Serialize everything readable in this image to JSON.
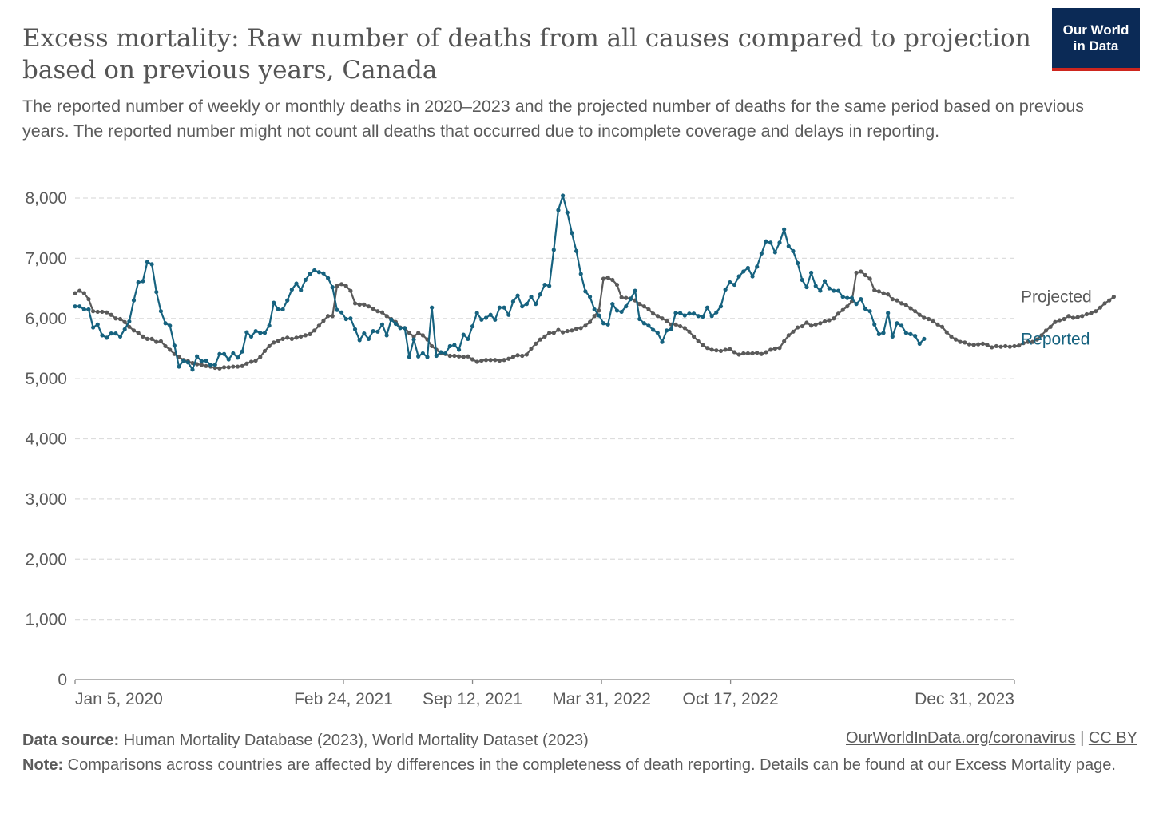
{
  "header": {
    "title": "Excess mortality: Raw number of deaths from all causes compared to projection based on previous years, Canada",
    "subtitle": "The reported number of weekly or monthly deaths in 2020–2023 and the projected number of deaths for the same period based on previous years. The reported number might not count all deaths that occurred due to incomplete coverage and delays in reporting."
  },
  "logo": {
    "line1": "Our World",
    "line2": "in Data",
    "bg": "#0b2a56",
    "accent": "#ce261e"
  },
  "footer": {
    "source_label": "Data source:",
    "source_text": "Human Mortality Database (2023), World Mortality Dataset (2023)",
    "link_text": "OurWorldInData.org/coronavirus",
    "separator": "|",
    "license_text": "CC BY",
    "note_label": "Note:",
    "note_text": "Comparisons across countries are affected by differences in the completeness of death reporting. Details can be found at our Excess Mortality page."
  },
  "chart_data": {
    "type": "line",
    "ylim": [
      0,
      8000
    ],
    "yticks": [
      0,
      1000,
      2000,
      3000,
      4000,
      5000,
      6000,
      7000,
      8000
    ],
    "ytick_labels": [
      "0",
      "1,000",
      "2,000",
      "3,000",
      "4,000",
      "5,000",
      "6,000",
      "7,000",
      "8,000"
    ],
    "xlim": [
      "2020-01-05",
      "2023-12-31"
    ],
    "xticks": [
      "2020-01-05",
      "2021-02-24",
      "2021-09-12",
      "2022-03-31",
      "2022-10-17",
      "2023-12-31"
    ],
    "xtick_labels": [
      "Jan 5, 2020",
      "Feb 24, 2021",
      "Sep 12, 2021",
      "Mar 31, 2022",
      "Oct 17, 2022",
      "Dec 31, 2023"
    ],
    "grid": true,
    "legend_position": "right, at line ends",
    "x_start": "2020-01-05",
    "x_step_days": 7,
    "series": [
      {
        "name": "Projected",
        "color": "#5a5a5a",
        "values": [
          6420,
          6460,
          6420,
          6320,
          6120,
          6110,
          6110,
          6100,
          6060,
          6000,
          5990,
          5940,
          5860,
          5800,
          5760,
          5700,
          5660,
          5660,
          5610,
          5620,
          5540,
          5480,
          5410,
          5360,
          5310,
          5290,
          5260,
          5240,
          5230,
          5210,
          5200,
          5180,
          5170,
          5190,
          5190,
          5200,
          5200,
          5210,
          5250,
          5280,
          5300,
          5360,
          5460,
          5540,
          5600,
          5630,
          5660,
          5680,
          5660,
          5680,
          5700,
          5720,
          5740,
          5800,
          5880,
          5960,
          6040,
          6040,
          6540,
          6570,
          6540,
          6460,
          6250,
          6230,
          6230,
          6200,
          6160,
          6120,
          6100,
          6040,
          5990,
          5940,
          5850,
          5840,
          5760,
          5700,
          5760,
          5720,
          5650,
          5540,
          5480,
          5420,
          5410,
          5380,
          5380,
          5370,
          5360,
          5370,
          5320,
          5280,
          5300,
          5310,
          5310,
          5310,
          5300,
          5310,
          5330,
          5360,
          5390,
          5380,
          5400,
          5500,
          5580,
          5650,
          5700,
          5760,
          5760,
          5810,
          5770,
          5790,
          5800,
          5830,
          5840,
          5880,
          5940,
          6040,
          6130,
          6660,
          6680,
          6640,
          6560,
          6350,
          6340,
          6330,
          6300,
          6240,
          6200,
          6150,
          6080,
          6040,
          6000,
          5960,
          5900,
          5900,
          5870,
          5840,
          5780,
          5700,
          5620,
          5560,
          5510,
          5480,
          5470,
          5460,
          5480,
          5490,
          5440,
          5400,
          5420,
          5420,
          5420,
          5430,
          5410,
          5440,
          5480,
          5500,
          5510,
          5620,
          5720,
          5780,
          5850,
          5870,
          5930,
          5880,
          5900,
          5920,
          5950,
          5970,
          6000,
          6080,
          6140,
          6200,
          6280,
          6760,
          6780,
          6720,
          6660,
          6470,
          6450,
          6420,
          6400,
          6320,
          6300,
          6250,
          6220,
          6170,
          6120,
          6060,
          6010,
          5990,
          5950,
          5900,
          5860,
          5770,
          5700,
          5650,
          5610,
          5600,
          5570,
          5560,
          5570,
          5580,
          5560,
          5520,
          5540,
          5530,
          5540,
          5530,
          5540,
          5550,
          5590,
          5610,
          5610,
          5650,
          5720,
          5800,
          5860,
          5940,
          5970,
          5990,
          6040,
          6010,
          6020,
          6040,
          6070,
          6090,
          6120,
          6180,
          6250,
          6300,
          6360
        ]
      },
      {
        "name": "Reported",
        "color": "#16627f",
        "values": [
          6200,
          6200,
          6150,
          6150,
          5850,
          5900,
          5720,
          5680,
          5750,
          5750,
          5700,
          5820,
          5950,
          6300,
          6600,
          6620,
          6940,
          6900,
          6440,
          6120,
          5920,
          5880,
          5550,
          5200,
          5300,
          5270,
          5150,
          5370,
          5290,
          5300,
          5230,
          5230,
          5410,
          5410,
          5320,
          5420,
          5350,
          5450,
          5770,
          5700,
          5790,
          5760,
          5760,
          5880,
          6260,
          6150,
          6150,
          6300,
          6480,
          6580,
          6470,
          6640,
          6740,
          6800,
          6770,
          6750,
          6670,
          6520,
          6140,
          6100,
          5990,
          6000,
          5820,
          5640,
          5750,
          5660,
          5790,
          5780,
          5900,
          5720,
          5980,
          5910,
          5840,
          5840,
          5360,
          5650,
          5370,
          5420,
          5360,
          6180,
          5380,
          5440,
          5420,
          5540,
          5560,
          5480,
          5730,
          5660,
          5870,
          6090,
          5980,
          6010,
          6060,
          5980,
          6180,
          6180,
          6060,
          6280,
          6380,
          6200,
          6240,
          6360,
          6240,
          6400,
          6560,
          6540,
          7140,
          7800,
          8040,
          7760,
          7420,
          7120,
          6740,
          6450,
          6360,
          6150,
          6050,
          5920,
          5900,
          6240,
          6130,
          6110,
          6200,
          6320,
          6460,
          5990,
          5920,
          5880,
          5810,
          5760,
          5610,
          5800,
          5820,
          6090,
          6090,
          6050,
          6080,
          6080,
          6040,
          6030,
          6180,
          6040,
          6100,
          6200,
          6480,
          6600,
          6560,
          6700,
          6780,
          6840,
          6700,
          6860,
          7080,
          7280,
          7260,
          7100,
          7260,
          7480,
          7200,
          7120,
          6920,
          6640,
          6520,
          6760,
          6540,
          6460,
          6620,
          6500,
          6460,
          6460,
          6360,
          6340,
          6340,
          6240,
          6320,
          6160,
          6120,
          5900,
          5740,
          5760,
          6090,
          5700,
          5920,
          5880,
          5760,
          5740,
          5710,
          5580,
          5660
        ]
      }
    ]
  }
}
